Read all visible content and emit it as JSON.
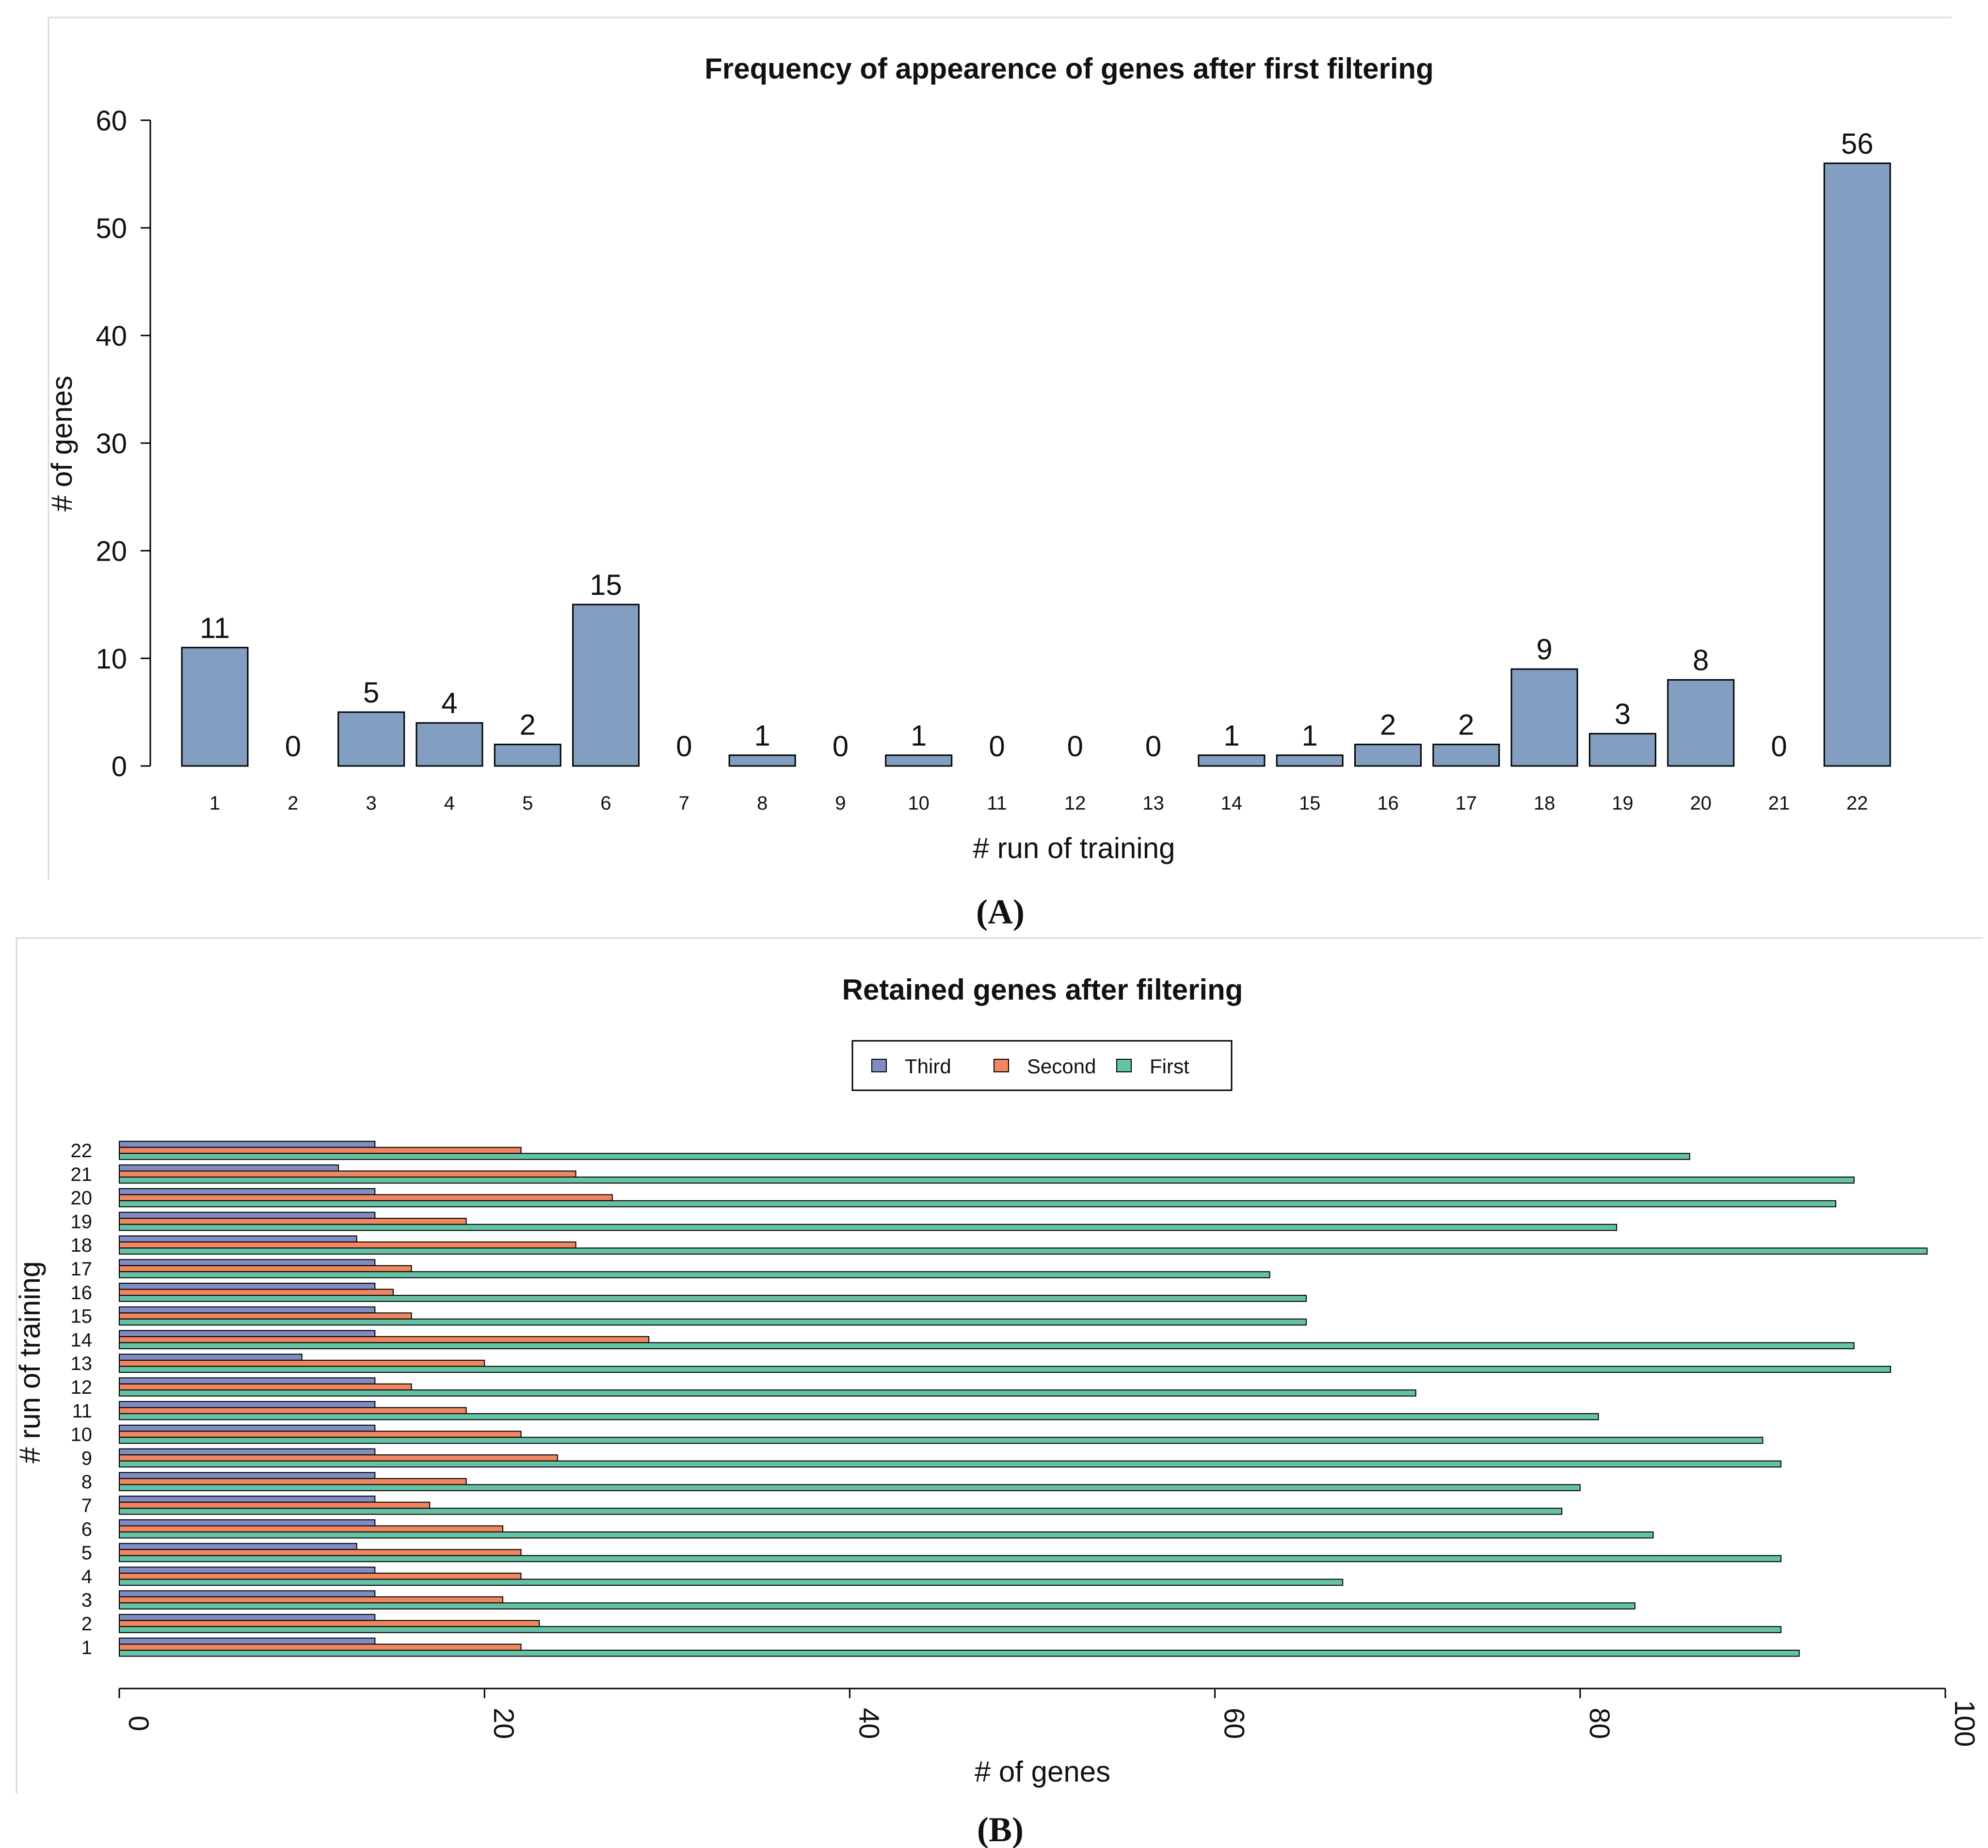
{
  "chart_data": [
    {
      "panel_label": "(A)",
      "type": "bar",
      "title": "Frequency of appearence of genes after first filtering",
      "xlabel": "# run of training",
      "ylabel": "# of genes",
      "categories": [
        "1",
        "2",
        "3",
        "4",
        "5",
        "6",
        "7",
        "8",
        "9",
        "10",
        "11",
        "12",
        "13",
        "14",
        "15",
        "16",
        "17",
        "18",
        "19",
        "20",
        "21",
        "22"
      ],
      "values": [
        11,
        0,
        5,
        4,
        2,
        15,
        0,
        1,
        0,
        1,
        0,
        0,
        0,
        1,
        1,
        2,
        2,
        9,
        3,
        8,
        0,
        56
      ],
      "ylim": [
        0,
        60
      ],
      "yticks": [
        0,
        10,
        20,
        30,
        40,
        50,
        60
      ],
      "bar_color": "#829fc1"
    },
    {
      "panel_label": "(B)",
      "type": "bar",
      "orientation": "horizontal",
      "title": "Retained genes after filtering",
      "xlabel": "# of genes",
      "ylabel": "# run of training",
      "categories": [
        "1",
        "2",
        "3",
        "4",
        "5",
        "6",
        "7",
        "8",
        "9",
        "10",
        "11",
        "12",
        "13",
        "14",
        "15",
        "16",
        "17",
        "18",
        "19",
        "20",
        "21",
        "22"
      ],
      "xlim": [
        0,
        100
      ],
      "xticks": [
        0,
        20,
        40,
        60,
        80,
        100
      ],
      "legend_position": "top-center",
      "series": [
        {
          "name": "Third",
          "color": "#7f8dc3",
          "values": [
            14,
            14,
            14,
            14,
            13,
            14,
            14,
            14,
            14,
            14,
            14,
            14,
            10,
            14,
            14,
            14,
            14,
            13,
            14,
            14,
            12,
            14
          ]
        },
        {
          "name": "Second",
          "color": "#f0865f",
          "values": [
            22,
            23,
            21,
            22,
            22,
            21,
            17,
            19,
            24,
            22,
            19,
            16,
            20,
            29,
            16,
            15,
            16,
            25,
            19,
            27,
            25,
            22
          ]
        },
        {
          "name": "First",
          "color": "#66c2a5",
          "values": [
            92,
            91,
            83,
            67,
            91,
            84,
            79,
            80,
            91,
            90,
            81,
            71,
            97,
            95,
            65,
            65,
            63,
            99,
            82,
            94,
            95,
            86
          ]
        }
      ]
    }
  ]
}
